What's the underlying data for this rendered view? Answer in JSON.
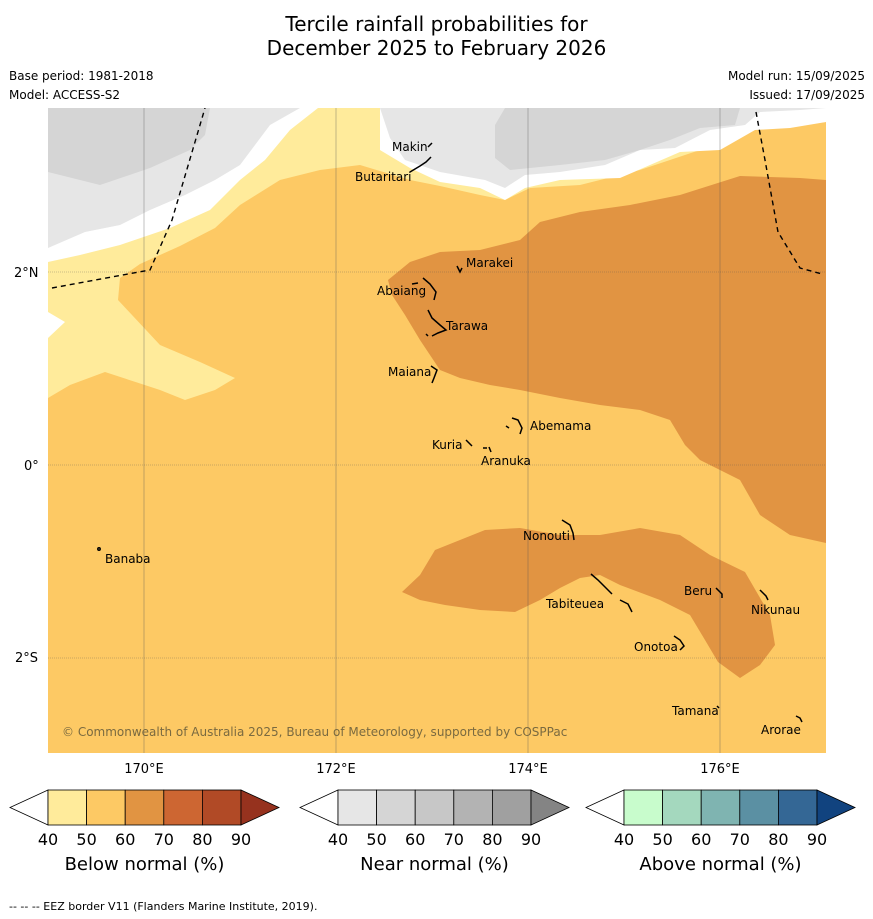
{
  "title_line1": "Tercile rainfall probabilities for",
  "title_line2": "December 2025 to February 2026",
  "base_period": "Base period: 1981-2018",
  "model": "Model: ACCESS-S2",
  "model_run": "Model run: 15/09/2025",
  "issued": "Issued: 17/09/2025",
  "copyright": "© Commonwealth of Australia 2025, Bureau of Meteorology, supported by COSPPac",
  "footer": "-- -- -- EEZ border V11 (Flanders Marine Institute, 2019).",
  "axes": {
    "lon_labels": [
      "170°E",
      "172°E",
      "174°E",
      "176°E"
    ],
    "lat_labels": [
      "2°N",
      "0°",
      "2°S"
    ]
  },
  "places": [
    {
      "name": "Makin"
    },
    {
      "name": "Butaritari"
    },
    {
      "name": "Marakei"
    },
    {
      "name": "Abaiang"
    },
    {
      "name": "Tarawa"
    },
    {
      "name": "Maiana"
    },
    {
      "name": "Abemama"
    },
    {
      "name": "Kuria"
    },
    {
      "name": "Aranuka"
    },
    {
      "name": "Banaba"
    },
    {
      "name": "Nonouti"
    },
    {
      "name": "Tabiteuea"
    },
    {
      "name": "Beru"
    },
    {
      "name": "Nikunau"
    },
    {
      "name": "Onotoa"
    },
    {
      "name": "Tamana"
    },
    {
      "name": "Arorae"
    }
  ],
  "colorbars": [
    {
      "label": "Below normal (%)",
      "ticks": [
        "40",
        "50",
        "60",
        "70",
        "80",
        "90"
      ],
      "colors": [
        "#ffffff",
        "#ffeb9b",
        "#fdc964",
        "#e19442",
        "#cd6632",
        "#b14a26",
        "#96321e"
      ]
    },
    {
      "label": "Near normal (%)",
      "ticks": [
        "40",
        "50",
        "60",
        "70",
        "80",
        "90"
      ],
      "colors": [
        "#ffffff",
        "#e6e6e6",
        "#d5d5d5",
        "#c7c7c7",
        "#b3b3b3",
        "#a0a0a0",
        "#848484"
      ]
    },
    {
      "label": "Above normal (%)",
      "ticks": [
        "40",
        "50",
        "60",
        "70",
        "80",
        "90"
      ],
      "colors": [
        "#ffffff",
        "#c8fccc",
        "#a4d8be",
        "#7fb4b1",
        "#5b90a3",
        "#346795",
        "#11437f"
      ]
    }
  ],
  "colors": {
    "below_50": "#ffeb9b",
    "below_60": "#fdc964",
    "below_70": "#e19442",
    "near_40": "#e6e6e6",
    "near_50": "#d5d5d5"
  }
}
